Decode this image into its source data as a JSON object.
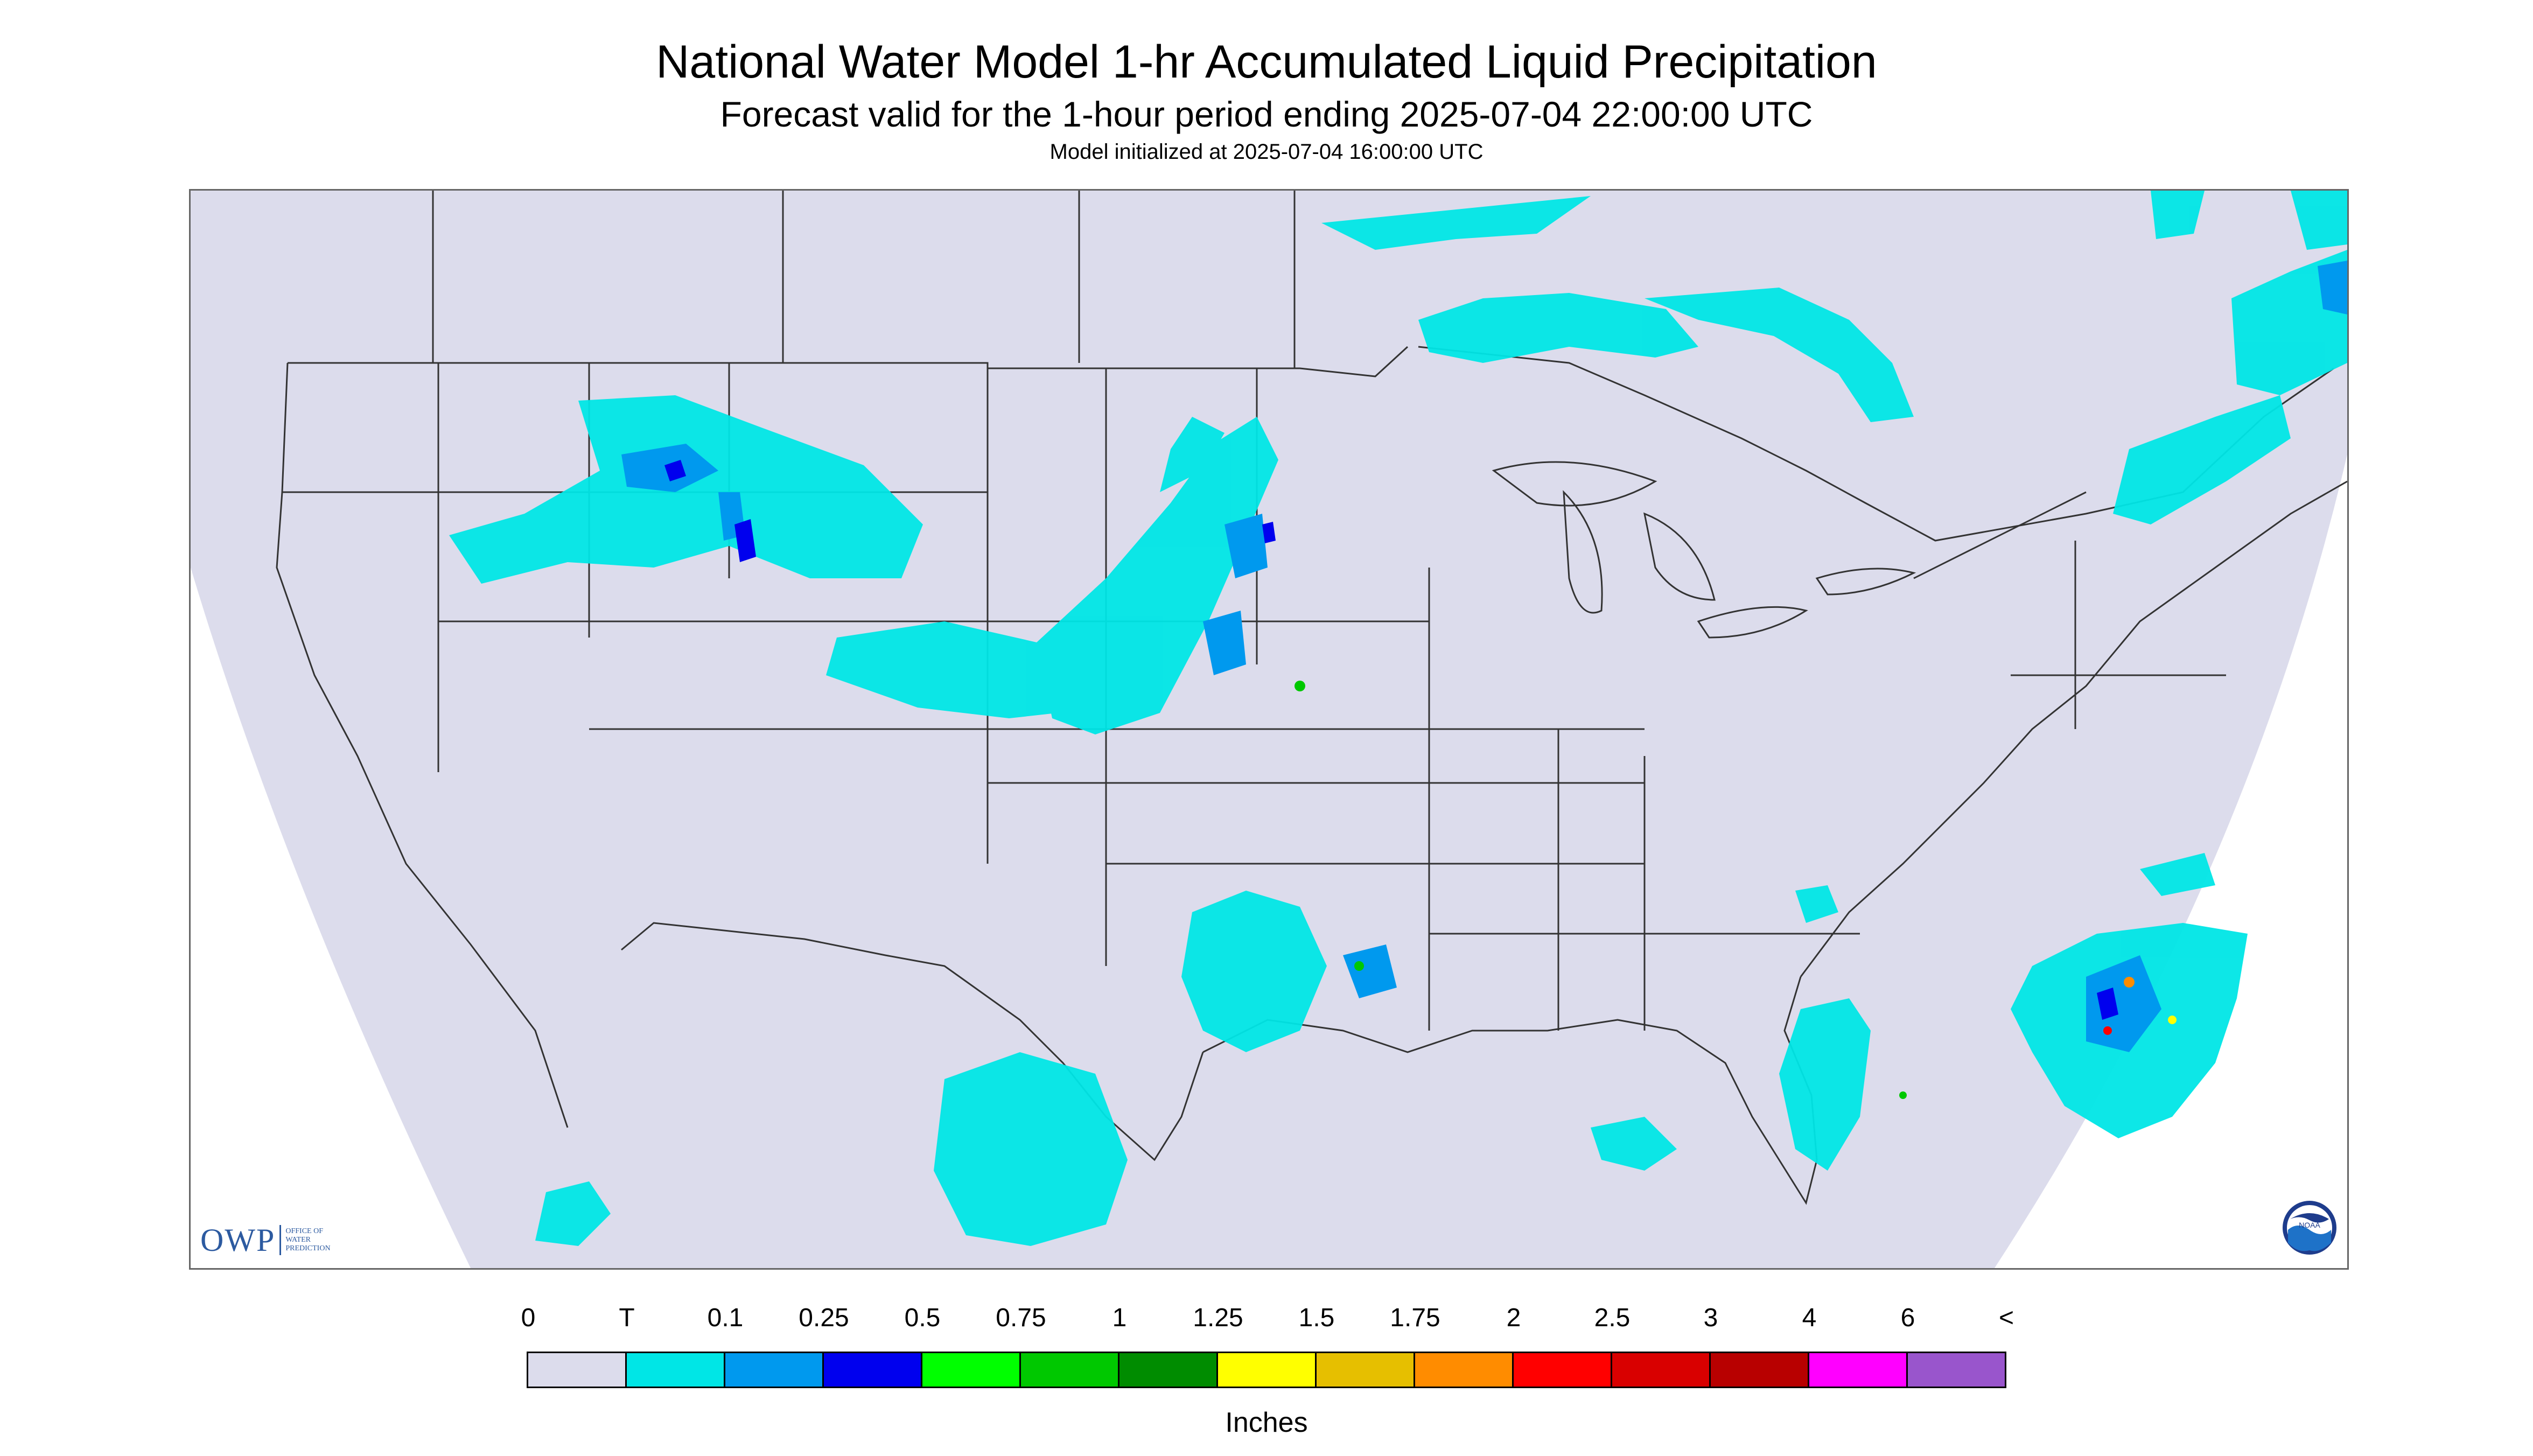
{
  "header": {
    "title": "National Water Model 1-hr Accumulated Liquid Precipitation",
    "subtitle": "Forecast valid for the 1-hour period ending 2025-07-04 22:00:00 UTC",
    "init": "Model initialized at 2025-07-04 16:00:00 UTC"
  },
  "logos": {
    "owp_text": "OWP",
    "owp_small_1": "OFFICE OF",
    "owp_small_2": "WATER",
    "owp_small_3": "PREDICTION",
    "noaa_text": "NOAA"
  },
  "colors": {
    "background_domain": "#dcdcec",
    "outside_domain": "#ffffff",
    "borders": "#333333"
  },
  "legend": {
    "labels": [
      "0",
      "T",
      "0.1",
      "0.25",
      "0.5",
      "0.75",
      "1",
      "1.25",
      "1.5",
      "1.75",
      "2",
      "2.5",
      "3",
      "4",
      "6",
      "<"
    ],
    "colors": [
      "#dcdcec",
      "#00e6e6",
      "#0099ee",
      "#0000ee",
      "#00ff00",
      "#00c800",
      "#008c00",
      "#ffff00",
      "#e6bf00",
      "#ff8c00",
      "#ff0000",
      "#d90000",
      "#b80000",
      "#ff00ff",
      "#9955cc"
    ],
    "units": "Inches"
  }
}
